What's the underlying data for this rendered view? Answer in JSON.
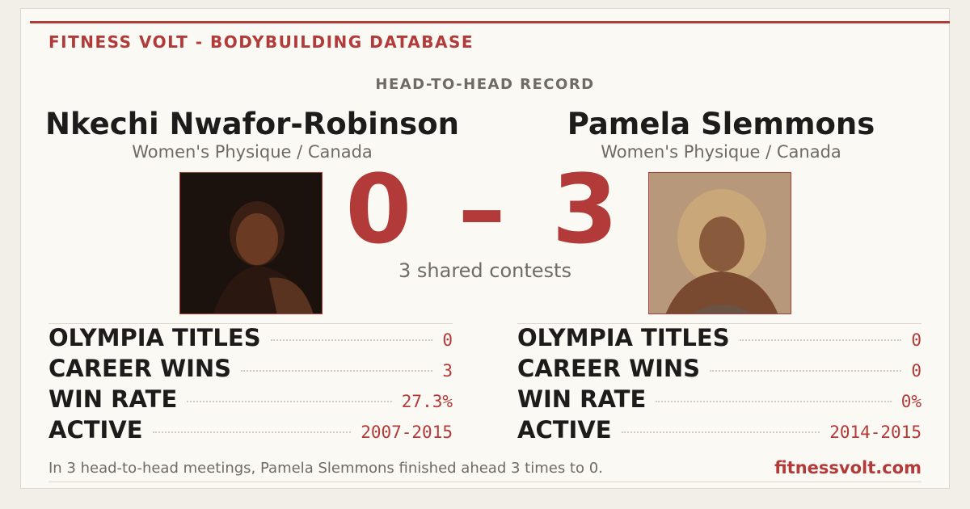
{
  "header": {
    "brand": "FITNESS VOLT - BODYBUILDING DATABASE",
    "subtitle": "HEAD-TO-HEAD RECORD"
  },
  "athletes": [
    {
      "name": "Nkechi Nwafor-Robinson",
      "division": "Women's Physique / Canada",
      "stats": [
        {
          "label": "OLYMPIA TITLES",
          "value": "0"
        },
        {
          "label": "CAREER WINS",
          "value": "3"
        },
        {
          "label": "WIN RATE",
          "value": "27.3%"
        },
        {
          "label": "ACTIVE",
          "value": "2007-2015"
        }
      ]
    },
    {
      "name": "Pamela Slemmons",
      "division": "Women's Physique / Canada",
      "stats": [
        {
          "label": "OLYMPIA TITLES",
          "value": "0"
        },
        {
          "label": "CAREER WINS",
          "value": "0"
        },
        {
          "label": "WIN RATE",
          "value": "0%"
        },
        {
          "label": "ACTIVE",
          "value": "2014-2015"
        }
      ]
    }
  ],
  "score": {
    "left": "0",
    "separator": "–",
    "right": "3",
    "caption": "3 shared contests"
  },
  "footer": {
    "summary": "In 3 head-to-head meetings, Pamela Slemmons finished ahead 3 times to 0.",
    "site": "fitnessvolt.com"
  }
}
